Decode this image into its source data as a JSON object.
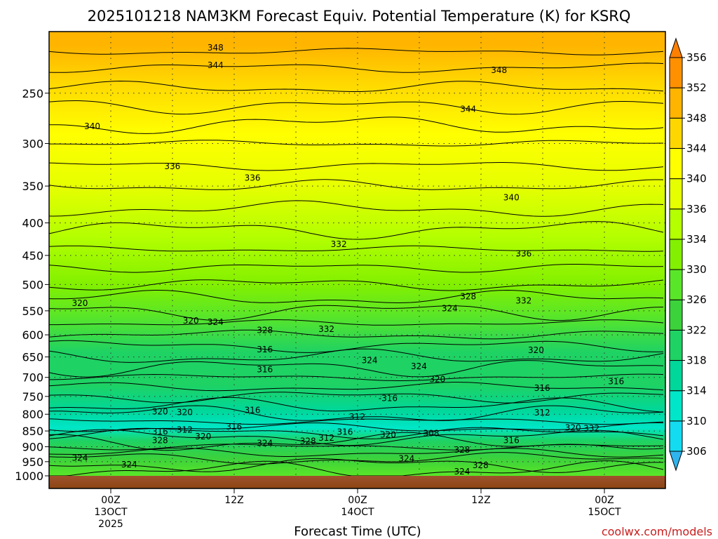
{
  "chart_data": {
    "type": "heatmap",
    "title": "2025101218 NAM3KM Forecast Equiv. Potential Temperature (K) for KSRQ",
    "xlabel": "Forecast Time (UTC)",
    "ylabel": "",
    "credit": "coolwx.com/models",
    "y_axis": {
      "scale": "log-pressure",
      "range": [
        1000,
        200
      ],
      "ticks": [
        250,
        300,
        350,
        400,
        450,
        500,
        550,
        600,
        650,
        700,
        750,
        800,
        850,
        900,
        950,
        1000
      ]
    },
    "x_axis": {
      "ticks": [
        {
          "line1": "00Z",
          "line2": "13OCT",
          "line3": "2025"
        },
        {
          "line1": "12Z",
          "line2": "",
          "line3": ""
        },
        {
          "line1": "00Z",
          "line2": "14OCT",
          "line3": ""
        },
        {
          "line1": "12Z",
          "line2": "",
          "line3": ""
        },
        {
          "line1": "00Z",
          "line2": "15OCT",
          "line3": ""
        }
      ]
    },
    "colorbar": {
      "levels": [
        306,
        310,
        314,
        318,
        322,
        326,
        330,
        334,
        336,
        340,
        344,
        348,
        352,
        356
      ],
      "colors": [
        "#2fb4ee",
        "#14dcf0",
        "#00e6c8",
        "#00d79a",
        "#1ed264",
        "#3cd23c",
        "#5ae628",
        "#82f000",
        "#b4ff00",
        "#e6ff00",
        "#ffff00",
        "#ffd700",
        "#ffb400",
        "#ff9100",
        "#ff8000"
      ]
    },
    "field_bands": [
      {
        "pressure": 210,
        "value": 350
      },
      {
        "pressure": 240,
        "value": 346
      },
      {
        "pressure": 290,
        "value": 342
      },
      {
        "pressure": 350,
        "value": 338
      },
      {
        "pressure": 420,
        "value": 335
      },
      {
        "pressure": 500,
        "value": 330
      },
      {
        "pressure": 560,
        "value": 326
      },
      {
        "pressure": 640,
        "value": 320
      },
      {
        "pressure": 720,
        "value": 318
      },
      {
        "pressure": 790,
        "value": 316
      },
      {
        "pressure": 840,
        "value": 312
      },
      {
        "pressure": 880,
        "value": 320
      },
      {
        "pressure": 940,
        "value": 324
      },
      {
        "pressure": 1000,
        "value": 326
      }
    ],
    "contour_labels": [
      {
        "text": "348",
        "x": 0.27,
        "pressure": 212
      },
      {
        "text": "344",
        "x": 0.27,
        "pressure": 226
      },
      {
        "text": "348",
        "x": 0.73,
        "pressure": 230
      },
      {
        "text": "344",
        "x": 0.68,
        "pressure": 265
      },
      {
        "text": "340",
        "x": 0.07,
        "pressure": 282
      },
      {
        "text": "336",
        "x": 0.2,
        "pressure": 326
      },
      {
        "text": "336",
        "x": 0.33,
        "pressure": 340
      },
      {
        "text": "340",
        "x": 0.75,
        "pressure": 365
      },
      {
        "text": "332",
        "x": 0.47,
        "pressure": 432
      },
      {
        "text": "336",
        "x": 0.77,
        "pressure": 447
      },
      {
        "text": "320",
        "x": 0.05,
        "pressure": 535
      },
      {
        "text": "328",
        "x": 0.68,
        "pressure": 522
      },
      {
        "text": "332",
        "x": 0.77,
        "pressure": 530
      },
      {
        "text": "324",
        "x": 0.65,
        "pressure": 545
      },
      {
        "text": "320",
        "x": 0.23,
        "pressure": 570
      },
      {
        "text": "324",
        "x": 0.27,
        "pressure": 573
      },
      {
        "text": "328",
        "x": 0.35,
        "pressure": 590
      },
      {
        "text": "332",
        "x": 0.45,
        "pressure": 588
      },
      {
        "text": "316",
        "x": 0.35,
        "pressure": 633
      },
      {
        "text": "320",
        "x": 0.79,
        "pressure": 634
      },
      {
        "text": "324",
        "x": 0.52,
        "pressure": 658
      },
      {
        "text": "324",
        "x": 0.6,
        "pressure": 673
      },
      {
        "text": "316",
        "x": 0.35,
        "pressure": 680
      },
      {
        "text": "320",
        "x": 0.63,
        "pressure": 705
      },
      {
        "text": "316",
        "x": 0.92,
        "pressure": 710
      },
      {
        "text": "316",
        "x": 0.8,
        "pressure": 728
      },
      {
        "text": "-316",
        "x": 0.55,
        "pressure": 755
      },
      {
        "text": "316",
        "x": 0.33,
        "pressure": 788
      },
      {
        "text": "320",
        "x": 0.18,
        "pressure": 792
      },
      {
        "text": "320",
        "x": 0.22,
        "pressure": 794
      },
      {
        "text": "312",
        "x": 0.8,
        "pressure": 795
      },
      {
        "text": "312",
        "x": 0.5,
        "pressure": 808
      },
      {
        "text": "316",
        "x": 0.3,
        "pressure": 837
      },
      {
        "text": "320",
        "x": 0.85,
        "pressure": 840
      },
      {
        "text": "332",
        "x": 0.88,
        "pressure": 842
      },
      {
        "text": "316",
        "x": 0.18,
        "pressure": 852
      },
      {
        "text": "312",
        "x": 0.22,
        "pressure": 847
      },
      {
        "text": "316",
        "x": 0.48,
        "pressure": 853
      },
      {
        "text": "320",
        "x": 0.55,
        "pressure": 862
      },
      {
        "text": "308",
        "x": 0.62,
        "pressure": 857
      },
      {
        "text": "320",
        "x": 0.25,
        "pressure": 867
      },
      {
        "text": "312",
        "x": 0.45,
        "pressure": 872
      },
      {
        "text": "328",
        "x": 0.18,
        "pressure": 880
      },
      {
        "text": "316",
        "x": 0.75,
        "pressure": 880
      },
      {
        "text": "324",
        "x": 0.35,
        "pressure": 888
      },
      {
        "text": "328",
        "x": 0.42,
        "pressure": 882
      },
      {
        "text": "328",
        "x": 0.67,
        "pressure": 910
      },
      {
        "text": "324",
        "x": 0.05,
        "pressure": 937
      },
      {
        "text": "324",
        "x": 0.58,
        "pressure": 940
      },
      {
        "text": "324",
        "x": 0.13,
        "pressure": 960
      },
      {
        "text": "328",
        "x": 0.7,
        "pressure": 963
      },
      {
        "text": "324",
        "x": 0.67,
        "pressure": 985
      }
    ]
  }
}
